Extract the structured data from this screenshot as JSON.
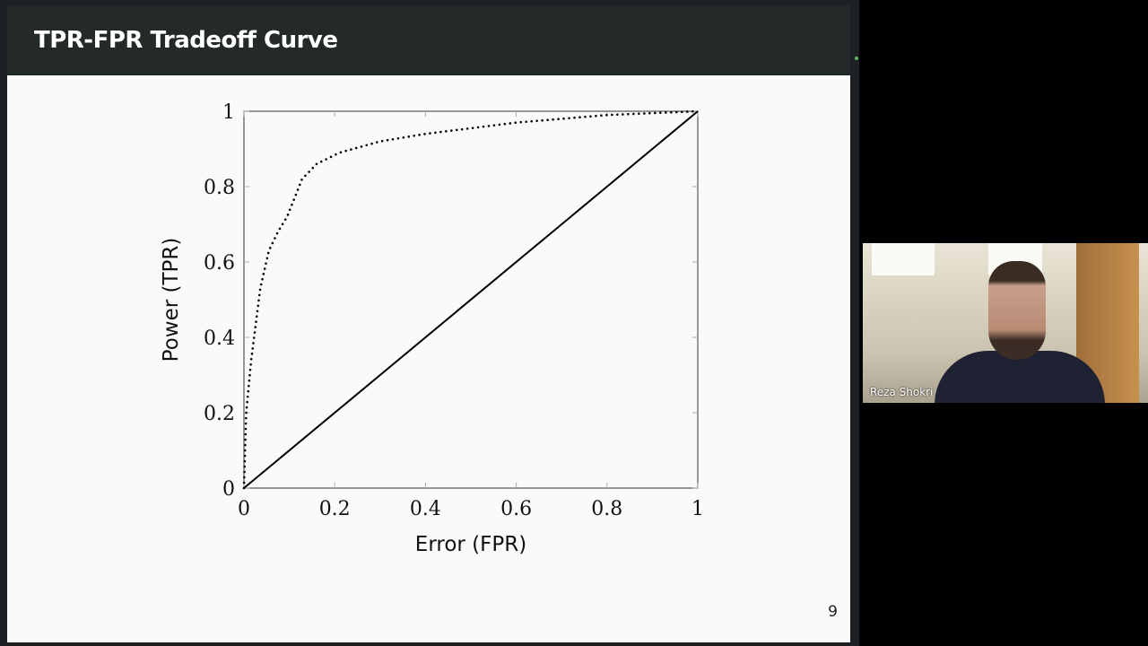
{
  "slide": {
    "title": "TPR-FPR Tradeoff Curve",
    "page_number": "9"
  },
  "participant": {
    "name": "Reza Shokri"
  },
  "chart_data": {
    "type": "line",
    "title": "",
    "xlabel": "Error (FPR)",
    "ylabel": "Power (TPR)",
    "xlim": [
      0,
      1
    ],
    "ylim": [
      0,
      1
    ],
    "xticks": [
      "0",
      "0.2",
      "0.4",
      "0.6",
      "0.8",
      "1"
    ],
    "yticks": [
      "0",
      "0.2",
      "0.4",
      "0.6",
      "0.8",
      "1"
    ],
    "grid": false,
    "series": [
      {
        "style": "dotted",
        "color": "#000000",
        "x": [
          0,
          0.005,
          0.016,
          0.036,
          0.055,
          0.075,
          0.095,
          0.128,
          0.16,
          0.21,
          0.3,
          0.4,
          0.5,
          0.6,
          0.7,
          0.8,
          0.9,
          1.0
        ],
        "y": [
          0,
          0.2,
          0.34,
          0.53,
          0.63,
          0.68,
          0.72,
          0.82,
          0.86,
          0.89,
          0.92,
          0.94,
          0.955,
          0.97,
          0.98,
          0.99,
          0.995,
          1.0
        ]
      },
      {
        "style": "solid",
        "color": "#000000",
        "x": [
          0,
          1
        ],
        "y": [
          0,
          1
        ]
      }
    ]
  }
}
